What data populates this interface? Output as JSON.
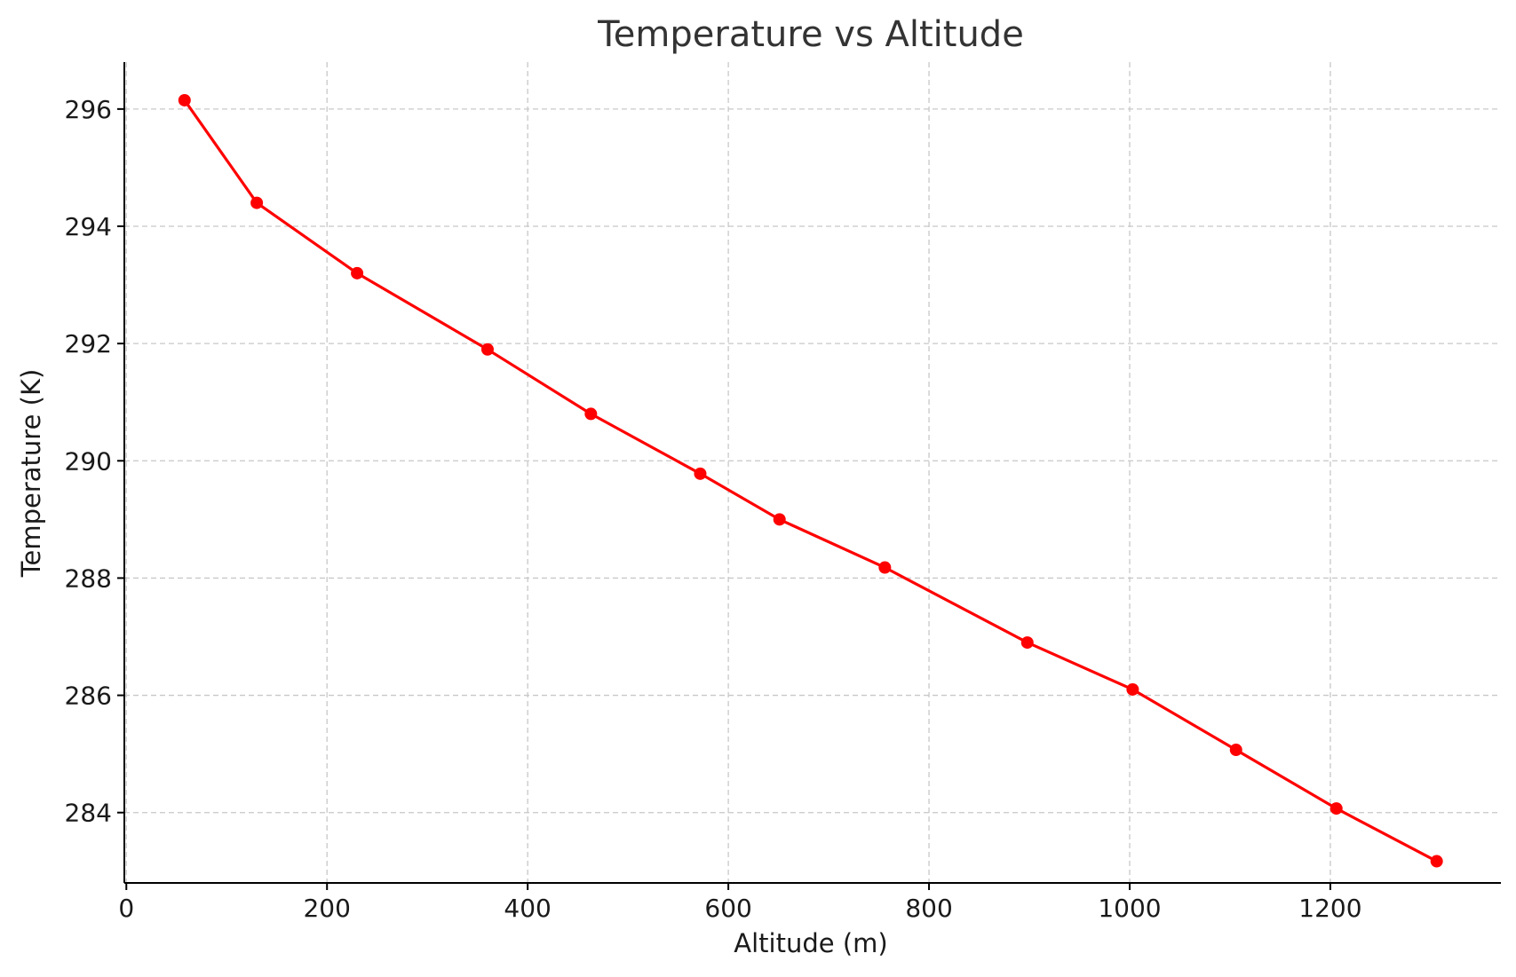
{
  "chart_data": {
    "type": "line",
    "title": "Temperature vs Altitude",
    "xlabel": "Altitude (m)",
    "ylabel": "Temperature (K)",
    "xlim": [
      -2,
      1370
    ],
    "ylim": [
      282.8,
      296.8
    ],
    "xticks": [
      0,
      200,
      400,
      600,
      800,
      1000,
      1200
    ],
    "yticks": [
      284,
      286,
      288,
      290,
      292,
      294,
      296
    ],
    "grid": true,
    "series": [
      {
        "color": "#ff0000",
        "marker": "circle",
        "x": [
          58,
          130,
          230,
          360,
          463,
          572,
          651,
          756,
          898,
          1003,
          1106,
          1206,
          1306
        ],
        "y": [
          296.15,
          294.4,
          293.2,
          291.9,
          290.8,
          289.78,
          289.0,
          288.18,
          286.9,
          286.1,
          285.07,
          284.07,
          283.17
        ]
      }
    ]
  }
}
